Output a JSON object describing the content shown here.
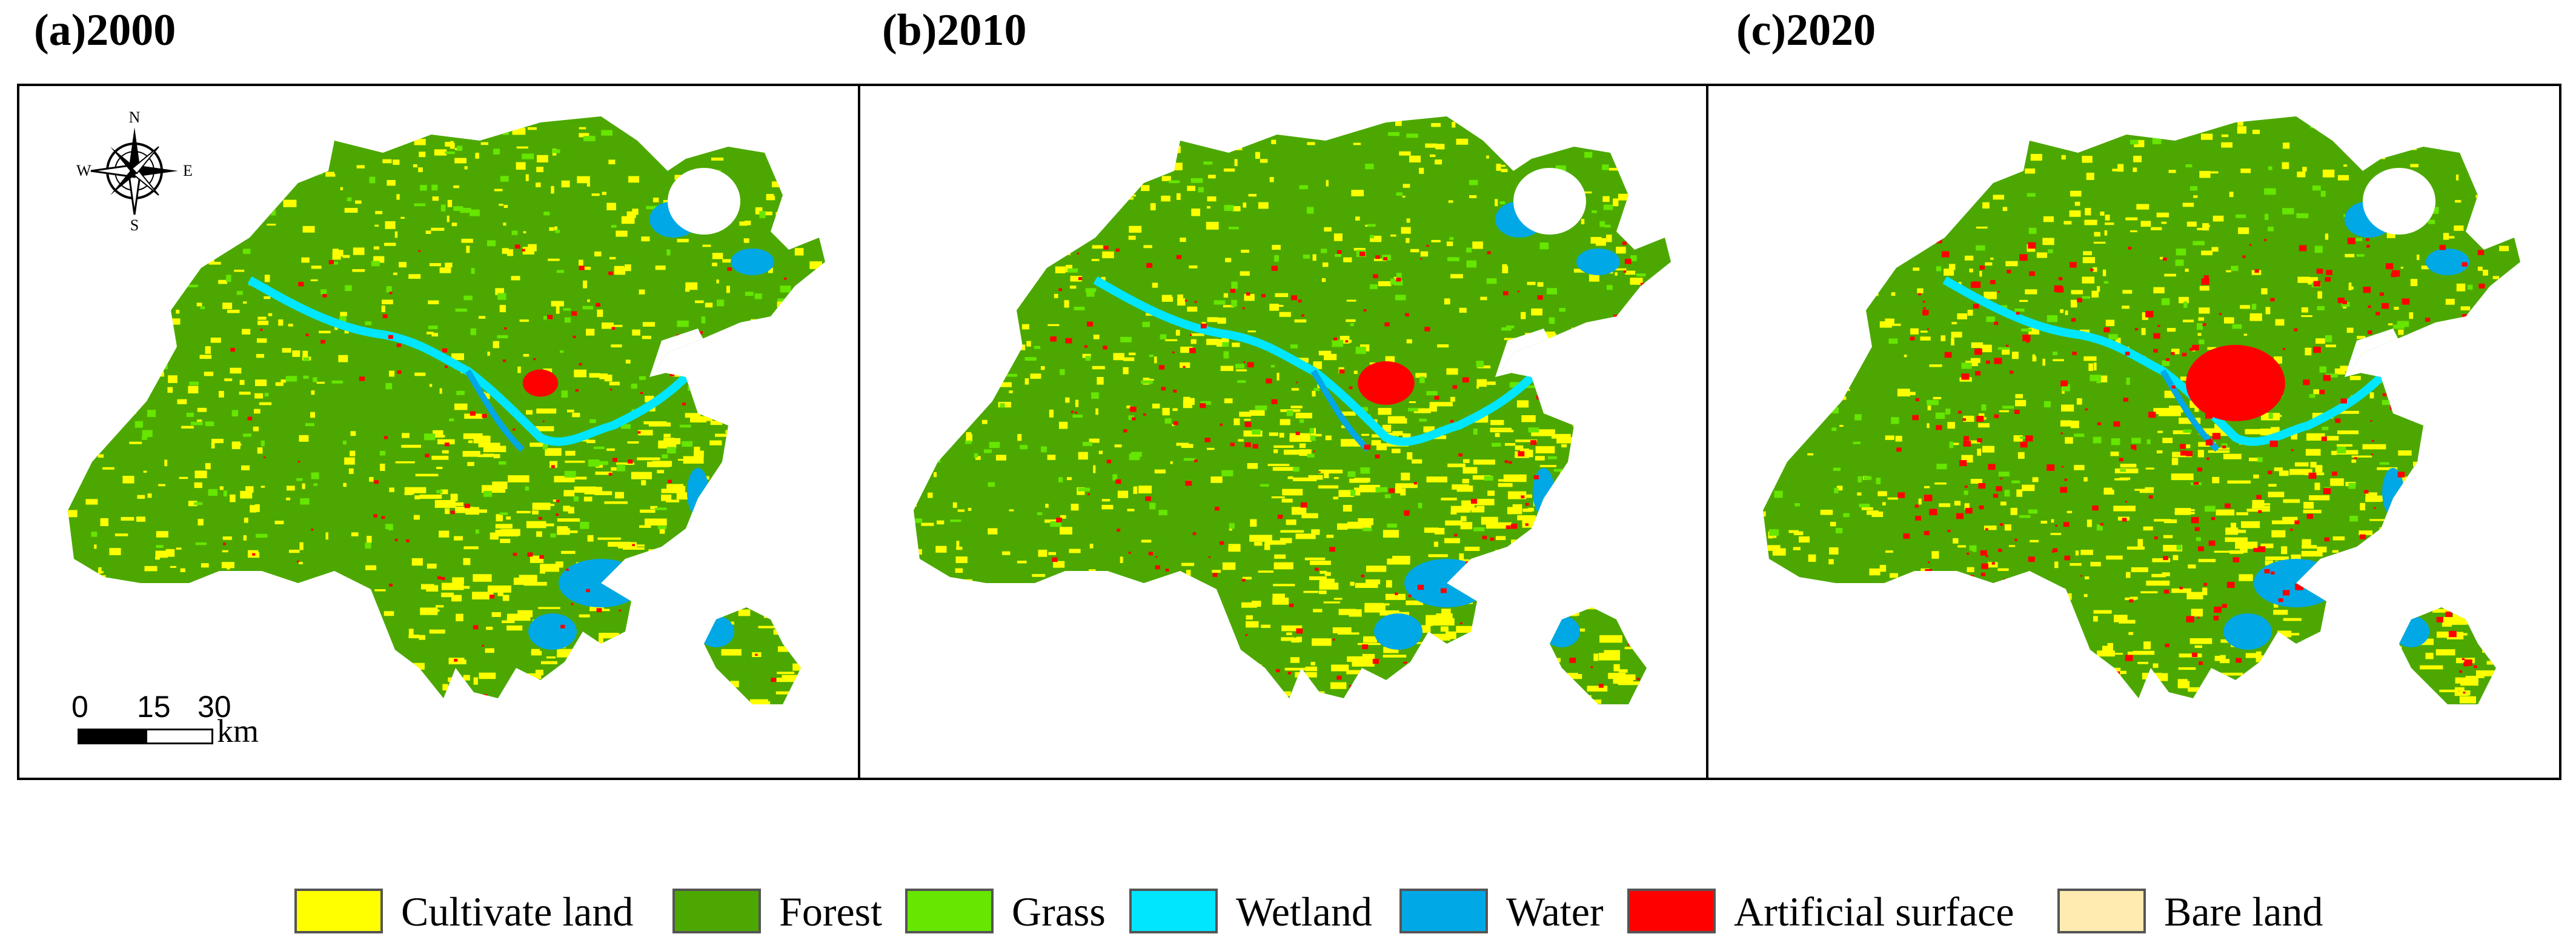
{
  "panels": [
    {
      "label": "(a)2000"
    },
    {
      "label": "(b)2010"
    },
    {
      "label": "(c)2020"
    }
  ],
  "compass": {
    "n": "N",
    "s": "S",
    "e": "E",
    "w": "W"
  },
  "scalebar": {
    "ticks": [
      "0",
      "15",
      "30"
    ],
    "unit": "km"
  },
  "legend": [
    {
      "label": "Cultivate land",
      "color": "#FFFF00"
    },
    {
      "label": "Forest",
      "color": "#4CA800"
    },
    {
      "label": "Grass",
      "color": "#66E600"
    },
    {
      "label": "Wetland",
      "color": "#00E6FF"
    },
    {
      "label": "Water",
      "color": "#00A8E6"
    },
    {
      "label": "Artificial surface",
      "color": "#FF0000"
    },
    {
      "label": "Bare land",
      "color": "#FFEBAF"
    }
  ]
}
